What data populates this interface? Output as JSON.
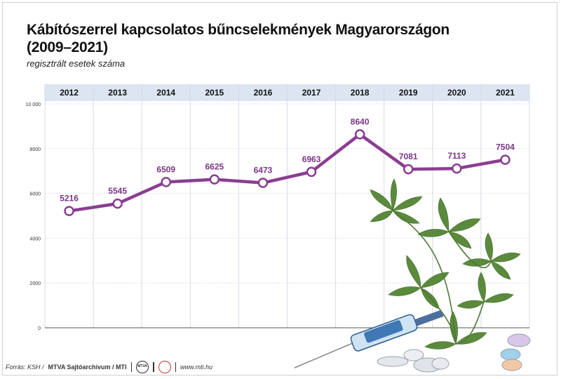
{
  "header": {
    "title": "Kábítószerrel kapcsolatos bűncselekmények Magyarországon (2009–2021)",
    "subtitle": "regisztrált esetek száma"
  },
  "footer": {
    "source_prefix": "Forrás: KSH /",
    "source_org": "MTVA Sajtóarchívum / MTI",
    "logo1_text": "MTVA",
    "website": "www.mti.hu"
  },
  "colors": {
    "line": "#8a3e91",
    "label": "#7b3585",
    "header_band": "#dde5f1",
    "grid": "#d6dbe3"
  },
  "decoration": {
    "illustration": "cannabis-leaves-syringe-pills"
  },
  "chart_data": {
    "type": "line",
    "categories": [
      "2012",
      "2013",
      "2014",
      "2015",
      "2016",
      "2017",
      "2018",
      "2019",
      "2020",
      "2021"
    ],
    "series": [
      {
        "values": [
          5216,
          5545,
          6509,
          6625,
          6473,
          6963,
          8640,
          7081,
          7113,
          7504
        ]
      }
    ],
    "y_ticks": [
      "0",
      "2000",
      "4000",
      "6000",
      "8000",
      "10 000"
    ],
    "ylim": [
      0,
      10000
    ],
    "xlabel": "",
    "ylabel": "",
    "grid": true
  }
}
